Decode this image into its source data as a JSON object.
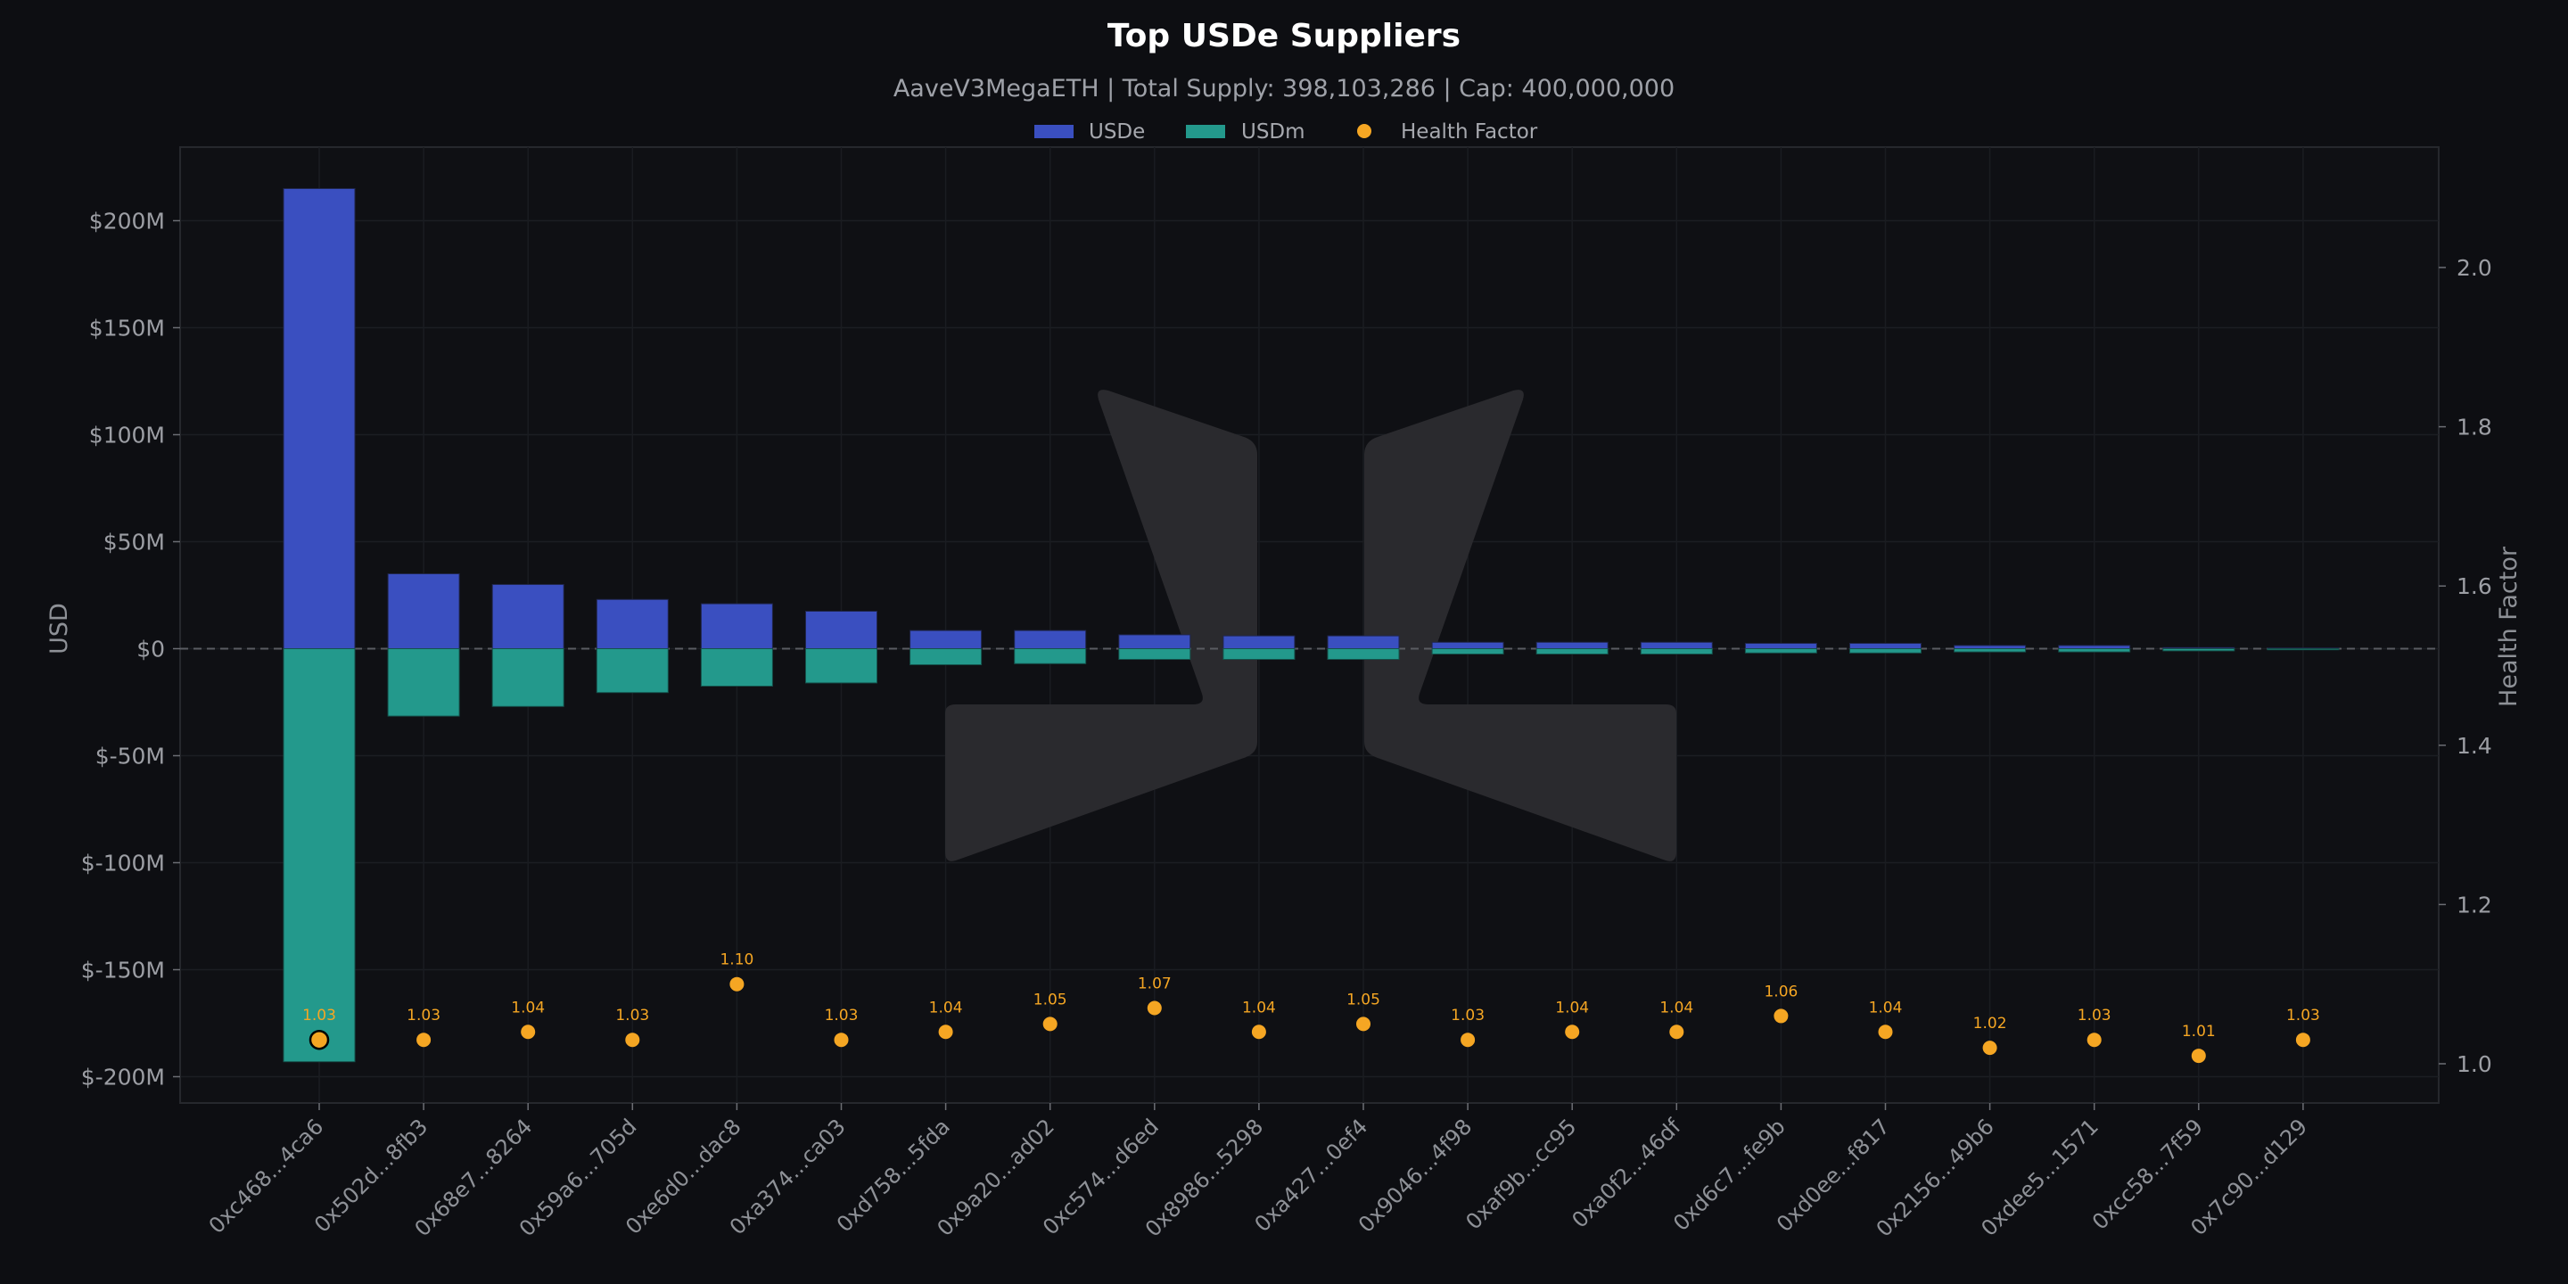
{
  "chart_data": {
    "type": "bar",
    "title": "Top USDe Suppliers",
    "subtitle": "AaveV3MegaETH | Total Supply: 398,103,286 | Cap: 400,000,000",
    "ylabel": "USD",
    "y2label": "Health Factor",
    "ylim": [
      -215000000,
      215000000
    ],
    "y2lim": [
      0.95,
      2.15
    ],
    "legend_position": "top-center",
    "grid": true,
    "y_ticks": [
      {
        "value": 200000000,
        "label": "$200M"
      },
      {
        "value": 150000000,
        "label": "$150M"
      },
      {
        "value": 100000000,
        "label": "$100M"
      },
      {
        "value": 50000000,
        "label": "$50M"
      },
      {
        "value": 0,
        "label": "$0"
      },
      {
        "value": -50000000,
        "label": "$-50M"
      },
      {
        "value": -100000000,
        "label": "$-100M"
      },
      {
        "value": -150000000,
        "label": "$-150M"
      },
      {
        "value": -200000000,
        "label": "$-200M"
      }
    ],
    "y2_ticks": [
      {
        "value": 2.0,
        "label": "2.0"
      },
      {
        "value": 1.8,
        "label": "1.8"
      },
      {
        "value": 1.6,
        "label": "1.6"
      },
      {
        "value": 1.4,
        "label": "1.4"
      },
      {
        "value": 1.2,
        "label": "1.2"
      },
      {
        "value": 1.0,
        "label": "1.0"
      }
    ],
    "categories": [
      "0xc468...4ca6",
      "0x502d...8fb3",
      "0x68e7...8264",
      "0x59a6...705d",
      "0xe6d0...dac8",
      "0xa374...ca03",
      "0xd758...5fda",
      "0x9a20...ad02",
      "0xc574...d6ed",
      "0x8986...5298",
      "0xa427...0ef4",
      "0x9046...4f98",
      "0xaf9b...cc95",
      "0xa0f2...46df",
      "0xd6c7...fe9b",
      "0xd0ee...f817",
      "0x2156...49b6",
      "0xdee5...1571",
      "0xcc58...7f59",
      "0x7c90...d129"
    ],
    "series": [
      {
        "name": "USDe",
        "type": "bar",
        "color": "#3a4fc0",
        "values": [
          215000000,
          35000000,
          30000000,
          23000000,
          21000000,
          17500000,
          8500000,
          8500000,
          6500000,
          6000000,
          6000000,
          3000000,
          3000000,
          3000000,
          2500000,
          2500000,
          1500000,
          1500000,
          500000,
          300000
        ]
      },
      {
        "name": "USDm",
        "type": "bar",
        "color": "#23998c",
        "values": [
          -193000000,
          -31500000,
          -27000000,
          -20500000,
          -17500000,
          -16000000,
          -7500000,
          -7000000,
          -5000000,
          -5000000,
          -5000000,
          -2500000,
          -2500000,
          -2500000,
          -2000000,
          -2000000,
          -1500000,
          -1500000,
          -1000000,
          -500000
        ]
      },
      {
        "name": "Health Factor",
        "type": "scatter",
        "axis": "y2",
        "color": "#f5a623",
        "values": [
          1.03,
          1.03,
          1.04,
          1.03,
          1.1,
          1.03,
          1.04,
          1.05,
          1.07,
          1.04,
          1.05,
          1.03,
          1.04,
          1.04,
          1.06,
          1.04,
          1.02,
          1.03,
          1.01,
          1.03
        ],
        "labels": [
          "1.03",
          "1.03",
          "1.04",
          "1.03",
          "1.10",
          "1.03",
          "1.04",
          "1.05",
          "1.07",
          "1.04",
          "1.05",
          "1.03",
          "1.04",
          "1.04",
          "1.06",
          "1.04",
          "1.02",
          "1.03",
          "1.01",
          "1.03"
        ]
      }
    ],
    "colors": {
      "background": "#0d0e12",
      "plot_background": "#0f1014",
      "grid": "#1c1e23",
      "zero_line": "#5a5c62",
      "watermark": "#2a2a2e",
      "highlight_ring": "#000000"
    }
  }
}
